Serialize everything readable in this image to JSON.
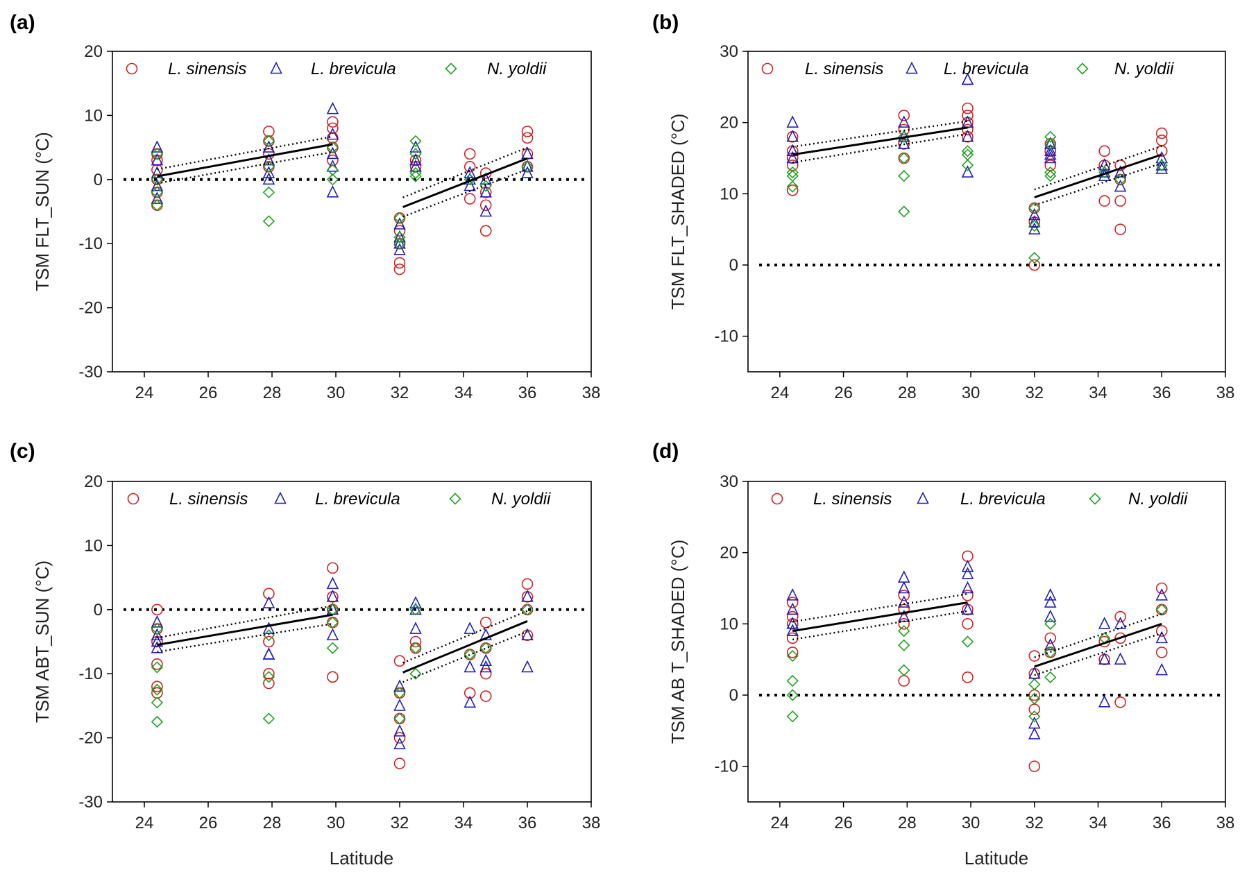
{
  "chart_data": [
    {
      "type": "scatter",
      "panel_label": "(a)",
      "ylabel": "TSM FLT_SUN (°C)",
      "xlabel": "",
      "xlim": [
        23,
        38
      ],
      "ylim": [
        -30,
        20
      ],
      "xticks": [
        24,
        26,
        28,
        30,
        32,
        34,
        36,
        38
      ],
      "yticks": [
        -30,
        -20,
        -10,
        0,
        10,
        20
      ],
      "legend": [
        "L. sinensis",
        "L. brevicula",
        "N. yoldii"
      ],
      "reference_line_y": 0,
      "fits": [
        {
          "x": [
            24.4,
            29.9
          ],
          "y": [
            0.5,
            5.5
          ],
          "ci_upper": [
            1.6,
            6.7
          ],
          "ci_lower": [
            -0.6,
            4.3
          ]
        },
        {
          "x": [
            32.1,
            36
          ],
          "y": [
            -4.3,
            3.3
          ],
          "ci_upper": [
            -2.8,
            5.0
          ],
          "ci_lower": [
            -5.8,
            1.6
          ]
        }
      ],
      "series": [
        {
          "name": "L. sinensis",
          "color": "#d42020",
          "marker": "circle",
          "x": [
            24.4,
            24.4,
            24.4,
            24.4,
            24.4,
            24.4,
            27.9,
            27.9,
            27.9,
            27.9,
            29.9,
            29.9,
            29.9,
            29.9,
            29.9,
            32,
            32,
            32,
            32,
            32,
            32.5,
            32.5,
            34.2,
            34.2,
            34.2,
            34.7,
            34.7,
            34.7,
            34.7,
            36,
            36,
            36,
            36
          ],
          "y": [
            4,
            3,
            1.5,
            0,
            -2,
            -4,
            7.5,
            6,
            4,
            2,
            9,
            8,
            6.5,
            5,
            3,
            -6,
            -8,
            -10,
            -13,
            -14,
            3,
            2,
            4,
            2,
            -3,
            1,
            -2,
            -4,
            -8,
            7.5,
            6.5,
            4,
            2
          ]
        },
        {
          "name": "L. brevicula",
          "color": "#2020b8",
          "marker": "triangle",
          "x": [
            24.4,
            24.4,
            24.4,
            24.4,
            24.4,
            27.9,
            27.9,
            27.9,
            27.9,
            29.9,
            29.9,
            29.9,
            29.9,
            29.9,
            32,
            32,
            32,
            32,
            32.5,
            32.5,
            32.5,
            34.2,
            34.2,
            34.2,
            34.7,
            34.7,
            34.7,
            36,
            36,
            36
          ],
          "y": [
            5,
            3,
            1,
            -1,
            -3,
            5,
            3,
            1,
            0,
            11,
            7,
            4,
            2,
            -2,
            -7,
            -9,
            -10,
            -11,
            5,
            3,
            2,
            1,
            0,
            -1,
            0,
            -2,
            -5,
            4,
            2,
            1
          ]
        },
        {
          "name": "N. yoldii",
          "color": "#20a020",
          "marker": "diamond",
          "x": [
            24.4,
            24.4,
            24.4,
            24.4,
            27.9,
            27.9,
            27.9,
            27.9,
            29.9,
            29.9,
            29.9,
            32,
            32,
            32,
            32.5,
            32.5,
            32.5,
            32.5,
            34.2,
            34.7,
            36
          ],
          "y": [
            4,
            0,
            -2,
            -4,
            6,
            2,
            -2,
            -6.5,
            5,
            1.5,
            0,
            -6,
            -9,
            -10,
            6,
            4,
            1,
            0.5,
            0,
            -1,
            2
          ]
        }
      ]
    },
    {
      "type": "scatter",
      "panel_label": "(b)",
      "ylabel": "TSM FLT_SHADED (°C)",
      "xlabel": "",
      "xlim": [
        23,
        38
      ],
      "ylim": [
        -15,
        30
      ],
      "xticks": [
        24,
        26,
        28,
        30,
        32,
        34,
        36,
        38
      ],
      "yticks": [
        -10,
        0,
        10,
        20,
        30
      ],
      "legend": [
        "L. sinensis",
        "L. brevicula",
        "N. yoldii"
      ],
      "reference_line_y": 0,
      "fits": [
        {
          "x": [
            24.4,
            29.9
          ],
          "y": [
            15.5,
            19.3
          ],
          "ci_upper": [
            16.6,
            20.2
          ],
          "ci_lower": [
            14.4,
            18.4
          ]
        },
        {
          "x": [
            32,
            36
          ],
          "y": [
            9.5,
            15.5
          ],
          "ci_upper": [
            10.6,
            16.7
          ],
          "ci_lower": [
            8.4,
            14.3
          ]
        }
      ],
      "series": [
        {
          "name": "L. sinensis",
          "color": "#d42020",
          "marker": "circle",
          "x": [
            24.4,
            24.4,
            24.4,
            24.4,
            24.4,
            27.9,
            27.9,
            27.9,
            27.9,
            29.9,
            29.9,
            29.9,
            29.9,
            29.9,
            32,
            32,
            32,
            32.5,
            32.5,
            32.5,
            34.2,
            34.2,
            34.2,
            34.7,
            34.7,
            34.7,
            34.7,
            36,
            36,
            36
          ],
          "y": [
            18,
            16,
            15,
            14,
            10.5,
            21,
            19,
            17,
            15,
            22,
            21,
            20,
            19,
            18,
            8,
            6,
            0,
            17,
            16,
            14,
            16,
            14,
            9,
            14,
            12,
            9,
            5,
            18.5,
            17.5,
            16
          ]
        },
        {
          "name": "L. brevicula",
          "color": "#2020b8",
          "marker": "triangle",
          "x": [
            24.4,
            24.4,
            24.4,
            24.4,
            27.9,
            27.9,
            27.9,
            29.9,
            29.9,
            29.9,
            29.9,
            29.9,
            32,
            32,
            32,
            32.5,
            32.5,
            32.5,
            32.5,
            34.2,
            34.2,
            34.2,
            34.7,
            34.7,
            36,
            36,
            36
          ],
          "y": [
            20,
            18,
            16,
            15,
            20,
            18,
            17,
            26,
            26,
            20,
            18,
            13,
            7,
            6,
            5,
            17,
            16,
            15.5,
            15,
            14,
            13,
            12.5,
            13,
            11,
            15,
            14,
            13.5
          ]
        },
        {
          "name": "N. yoldii",
          "color": "#20a020",
          "marker": "diamond",
          "x": [
            24.4,
            24.4,
            24.4,
            27.9,
            27.9,
            27.9,
            27.9,
            29.9,
            29.9,
            29.9,
            32,
            32,
            32,
            32.5,
            32.5,
            32.5,
            32.5,
            34.2,
            34.7,
            36
          ],
          "y": [
            13,
            12.5,
            11,
            15,
            12.5,
            7.5,
            18,
            16,
            15.5,
            14,
            8,
            5.5,
            1,
            18,
            17,
            13,
            12.5,
            13,
            12,
            14
          ]
        }
      ]
    },
    {
      "type": "scatter",
      "panel_label": "(c)",
      "ylabel": "TSM ABT_SUN (°C)",
      "xlabel": "Latitude",
      "xlim": [
        23,
        38
      ],
      "ylim": [
        -30,
        20
      ],
      "xticks": [
        24,
        26,
        28,
        30,
        32,
        34,
        36,
        38
      ],
      "yticks": [
        -30,
        -20,
        -10,
        0,
        10,
        20
      ],
      "legend": [
        "L. sinensis",
        "L. brevicula",
        "N. yoldii"
      ],
      "reference_line_y": 0,
      "fits": [
        {
          "x": [
            24.4,
            29.9
          ],
          "y": [
            -5.5,
            -0.8
          ],
          "ci_upper": [
            -4.4,
            0.6
          ],
          "ci_lower": [
            -6.6,
            -2.2
          ]
        },
        {
          "x": [
            32.1,
            36
          ],
          "y": [
            -9.8,
            -1.8
          ],
          "ci_upper": [
            -8.3,
            -0.2
          ],
          "ci_lower": [
            -11.3,
            -3.4
          ]
        }
      ],
      "series": [
        {
          "name": "L. sinensis",
          "color": "#d42020",
          "marker": "circle",
          "x": [
            24.4,
            24.4,
            24.4,
            24.4,
            24.4,
            24.4,
            27.9,
            27.9,
            27.9,
            27.9,
            29.9,
            29.9,
            29.9,
            29.9,
            29.9,
            32,
            32,
            32,
            32,
            32,
            32.5,
            32.5,
            34.2,
            34.2,
            34.7,
            34.7,
            34.7,
            34.7,
            36,
            36,
            36,
            36
          ],
          "y": [
            0,
            -3,
            -5,
            -8.5,
            -12,
            -13,
            2.5,
            -5,
            -10,
            -11.5,
            6.5,
            2,
            0,
            -2,
            -10.5,
            -8,
            -13,
            -17,
            -20,
            -24,
            -5,
            -6,
            -7,
            -13,
            -2,
            -6,
            -10,
            -13.5,
            4,
            2,
            0,
            -4
          ]
        },
        {
          "name": "L. brevicula",
          "color": "#2020b8",
          "marker": "triangle",
          "x": [
            24.4,
            24.4,
            24.4,
            24.4,
            27.9,
            27.9,
            27.9,
            27.9,
            29.9,
            29.9,
            29.9,
            29.9,
            32,
            32,
            32,
            32,
            32.5,
            32.5,
            32.5,
            34.2,
            34.2,
            34.2,
            34.7,
            34.7,
            34.7,
            36,
            36,
            36
          ],
          "y": [
            -2,
            -4,
            -5,
            -6,
            1,
            -3,
            -7,
            -7,
            4,
            2,
            0,
            -4,
            -12,
            -15,
            -19,
            -21,
            1,
            0,
            -3,
            -3,
            -9,
            -14.5,
            -4,
            -8,
            -9,
            2,
            -4,
            -9
          ]
        },
        {
          "name": "N. yoldii",
          "color": "#20a020",
          "marker": "diamond",
          "x": [
            24.4,
            24.4,
            24.4,
            24.4,
            24.4,
            27.9,
            27.9,
            27.9,
            29.9,
            29.9,
            29.9,
            32,
            32,
            32.5,
            32.5,
            32.5,
            34.2,
            34.7,
            36
          ],
          "y": [
            -3,
            -9,
            -12.5,
            -14.5,
            -17.5,
            -4,
            -10.5,
            -17,
            0,
            -2,
            -6,
            -13,
            -17,
            0,
            -6,
            -10,
            -7,
            -6,
            0
          ]
        }
      ]
    },
    {
      "type": "scatter",
      "panel_label": "(d)",
      "ylabel": "TSM AB T_SHADED (°C)",
      "xlabel": "Latitude",
      "xlim": [
        23,
        38
      ],
      "ylim": [
        -15,
        30
      ],
      "xticks": [
        24,
        26,
        28,
        30,
        32,
        34,
        36,
        38
      ],
      "yticks": [
        -10,
        0,
        10,
        20,
        30
      ],
      "legend": [
        "L. sinensis",
        "L. brevicula",
        "N. yoldii"
      ],
      "reference_line_y": 0,
      "fits": [
        {
          "x": [
            24.4,
            29.9
          ],
          "y": [
            9,
            13
          ],
          "ci_upper": [
            10.3,
            14.2
          ],
          "ci_lower": [
            7.8,
            11.8
          ]
        },
        {
          "x": [
            32,
            36
          ],
          "y": [
            4,
            10
          ],
          "ci_upper": [
            5.3,
            11.4
          ],
          "ci_lower": [
            2.8,
            8.7
          ]
        }
      ],
      "series": [
        {
          "name": "L. sinensis",
          "color": "#d42020",
          "marker": "circle",
          "x": [
            24.4,
            24.4,
            24.4,
            24.4,
            24.4,
            27.9,
            27.9,
            27.9,
            27.9,
            29.9,
            29.9,
            29.9,
            29.9,
            29.9,
            32,
            32,
            32,
            32,
            32,
            32.5,
            32.5,
            34.2,
            34.2,
            34.7,
            34.7,
            34.7,
            36,
            36,
            36,
            36
          ],
          "y": [
            13,
            11,
            10,
            8,
            6,
            14,
            12,
            10,
            2,
            19.5,
            14,
            12,
            10,
            2.5,
            5.5,
            3,
            0,
            -2,
            -10,
            8,
            6,
            7.5,
            5,
            11,
            8,
            -1,
            15,
            12,
            9,
            6
          ]
        },
        {
          "name": "L. brevicula",
          "color": "#2020b8",
          "marker": "triangle",
          "x": [
            24.4,
            24.4,
            24.4,
            24.4,
            27.9,
            27.9,
            27.9,
            27.9,
            29.9,
            29.9,
            29.9,
            29.9,
            32,
            32,
            32,
            32.5,
            32.5,
            32.5,
            32.5,
            34.2,
            34.2,
            34.2,
            34.7,
            34.7,
            36,
            36,
            36
          ],
          "y": [
            14,
            12,
            10,
            9,
            16.5,
            15,
            13,
            11,
            18,
            17,
            15,
            12,
            3,
            -4,
            -5.5,
            14,
            13,
            11,
            7,
            10,
            5,
            -1,
            10,
            5,
            14,
            8,
            3.5
          ]
        },
        {
          "name": "N. yoldii",
          "color": "#20a020",
          "marker": "diamond",
          "x": [
            24.4,
            24.4,
            24.4,
            24.4,
            27.9,
            27.9,
            27.9,
            29.9,
            32,
            32,
            32,
            32.5,
            32.5,
            32.5,
            34.2,
            36
          ],
          "y": [
            5.5,
            2,
            0,
            -3,
            9,
            7,
            3.5,
            7.5,
            1.5,
            -0.5,
            -3,
            10,
            6,
            2.5,
            8,
            12
          ]
        }
      ]
    }
  ]
}
